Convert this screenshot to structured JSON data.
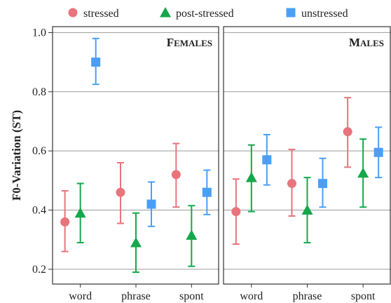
{
  "chart_data": {
    "type": "scatter",
    "ylabel": "F0-Variation (ST)",
    "ylim": [
      0.15,
      1.02
    ],
    "yticks": [
      0.2,
      0.4,
      0.6,
      0.8,
      1.0
    ],
    "ytick_labels": [
      "0.2",
      "0.4",
      "0.6",
      "0.8",
      "1.0"
    ],
    "categories": [
      "word",
      "phrase",
      "spont"
    ],
    "grid": "horizontal",
    "legend_position": "top",
    "legend": [
      {
        "name": "stressed",
        "color": "#e8747c",
        "marker": "circle"
      },
      {
        "name": "post-stressed",
        "color": "#14a84a",
        "marker": "triangle"
      },
      {
        "name": "unstressed",
        "color": "#4a9ff5",
        "marker": "square"
      }
    ],
    "panels": [
      {
        "title_first": "F",
        "title_rest": "EMALES",
        "series": [
          {
            "name": "stressed",
            "values": [
              0.36,
              0.46,
              0.52
            ],
            "lower": [
              0.26,
              0.355,
              0.41
            ],
            "upper": [
              0.465,
              0.56,
              0.625
            ]
          },
          {
            "name": "post-stressed",
            "values": [
              0.39,
              0.29,
              0.315
            ],
            "lower": [
              0.29,
              0.19,
              0.21
            ],
            "upper": [
              0.49,
              0.39,
              0.415
            ]
          },
          {
            "name": "unstressed",
            "values": [
              0.9,
              0.42,
              0.46
            ],
            "lower": [
              0.825,
              0.345,
              0.385
            ],
            "upper": [
              0.98,
              0.495,
              0.535
            ]
          }
        ]
      },
      {
        "title_first": "M",
        "title_rest": "ALES",
        "series": [
          {
            "name": "stressed",
            "values": [
              0.395,
              0.49,
              0.665
            ],
            "lower": [
              0.285,
              0.38,
              0.545
            ],
            "upper": [
              0.505,
              0.605,
              0.78
            ]
          },
          {
            "name": "post-stressed",
            "values": [
              0.51,
              0.4,
              0.525
            ],
            "lower": [
              0.395,
              0.29,
              0.41
            ],
            "upper": [
              0.62,
              0.51,
              0.64
            ]
          },
          {
            "name": "unstressed",
            "values": [
              0.57,
              0.49,
              0.595
            ],
            "lower": [
              0.485,
              0.41,
              0.51
            ],
            "upper": [
              0.655,
              0.575,
              0.68
            ]
          }
        ]
      }
    ]
  }
}
